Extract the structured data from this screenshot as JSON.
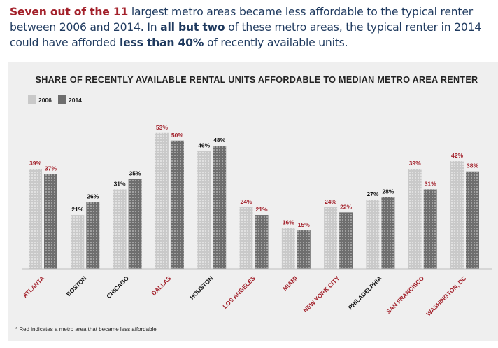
{
  "intro": {
    "part1": "Seven out of the 11",
    "part2": " largest metro areas became less affordable to the typical renter between 2006 and 2014. In ",
    "part3": "all but two",
    "part4": " of these metro areas, the typical renter in 2014 could have afforded ",
    "part5": "less than 40%",
    "part6": " of recently available units."
  },
  "colors": {
    "bar_2006": "#c9c9c9",
    "bar_2014": "#6e6e6e",
    "less_affordable_red": "#a3212b",
    "label_black": "#111111",
    "panel_bg": "#efefef",
    "window_stripe": "#ffffff"
  },
  "chart_data": {
    "type": "bar",
    "title": "SHARE OF RECENTLY AVAILABLE RENTAL UNITS AFFORDABLE TO MEDIAN METRO AREA RENTER",
    "legend_position": "top-left",
    "grid": false,
    "ylim": [
      0,
      60
    ],
    "categories": [
      "ATLANTA",
      "BOSTON",
      "CHICAGO",
      "DALLAS",
      "HOUSTON",
      "LOS ANGELES",
      "MIAMI",
      "NEW YORK CITY",
      "PHILADELPHIA",
      "SAN FRANCISCO",
      "WASHINGTON, DC"
    ],
    "less_affordable": [
      true,
      false,
      false,
      true,
      false,
      true,
      true,
      true,
      false,
      true,
      true
    ],
    "series": [
      {
        "name": "2006",
        "values": [
          39,
          21,
          31,
          53,
          46,
          24,
          16,
          24,
          27,
          39,
          42
        ],
        "labels": [
          "39%",
          "21%",
          "31%",
          "53%",
          "46%",
          "24%",
          "16%",
          "24%",
          "27%",
          "39%",
          "42%"
        ]
      },
      {
        "name": "2014",
        "values": [
          37,
          26,
          35,
          50,
          48,
          21,
          15,
          22,
          28,
          31,
          38
        ],
        "labels": [
          "37%",
          "26%",
          "35%",
          "50%",
          "48%",
          "21%",
          "15%",
          "22%",
          "28%",
          "31%",
          "38%"
        ]
      }
    ],
    "footnote": "* Red indicates a metro area that became less affordable"
  }
}
